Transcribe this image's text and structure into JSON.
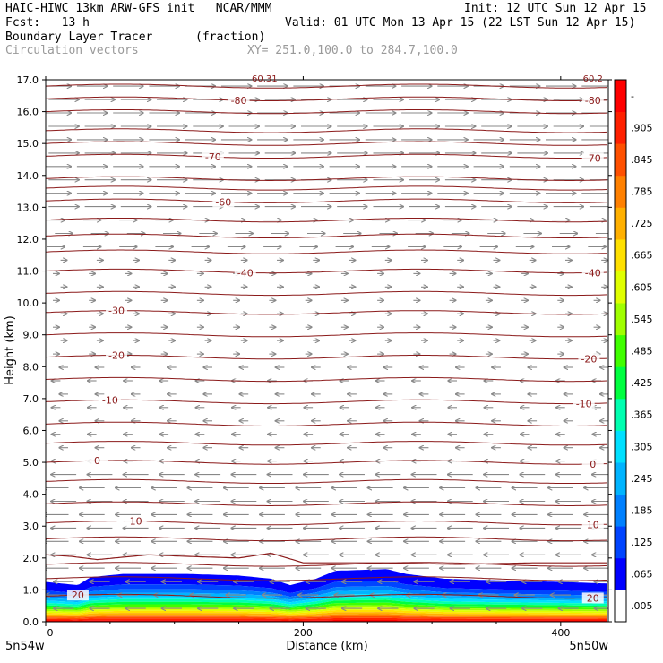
{
  "header": {
    "line1_left": "HAIC-HIWC 13km ARW-GFS init   NCAR/MMM",
    "line1_right": "Init: 12 UTC Sun 12 Apr 15",
    "line2_left": "Fcst:   13 h",
    "line2_right": "Valid: 01 UTC Mon 13 Apr 15 (22 LST Sun 12 Apr 15)",
    "field_name": "Boundary Layer Tracer",
    "field_units": "(fraction)",
    "overlay_name": "Circulation vectors",
    "cross_section": "XY= 251.0,100.0 to 284.7,100.0"
  },
  "chart_data": {
    "type": "cross-section",
    "xlabel": "Distance (km)",
    "ylabel": "Height (km)",
    "xlim": [
      0,
      437
    ],
    "ylim": [
      0,
      17
    ],
    "x_ticks": [
      "0",
      "200",
      "400"
    ],
    "x_tick_values": [
      0,
      200,
      400
    ],
    "y_ticks": [
      "0.0",
      "1.0",
      "2.0",
      "3.0",
      "4.0",
      "5.0",
      "6.0",
      "7.0",
      "8.0",
      "9.0",
      "10.0",
      "11.0",
      "12.0",
      "13.0",
      "14.0",
      "15.0",
      "16.0",
      "17.0"
    ],
    "x_left_label": "5n54w",
    "x_right_label": "5n50w",
    "top_labels": [
      {
        "text": "60.31",
        "x": 170
      },
      {
        "text": "60.2",
        "x": 425
      }
    ],
    "colorbar": {
      "labels": [
        ".005",
        ".065",
        ".125",
        ".185",
        ".245",
        ".305",
        ".365",
        ".425",
        ".485",
        ".545",
        ".605",
        ".665",
        ".725",
        ".785",
        ".845",
        ".905",
        "-"
      ],
      "colors": [
        "#ffffff",
        "#0000ff",
        "#0044ff",
        "#0080ff",
        "#00b4ff",
        "#00e0ff",
        "#00ffb0",
        "#00ff40",
        "#40ff00",
        "#a0ff00",
        "#e0ff00",
        "#ffe000",
        "#ffb000",
        "#ff8000",
        "#ff5000",
        "#ff2000",
        "#ff0000"
      ]
    },
    "temperature_contours": {
      "levels": [
        {
          "label": "20",
          "y": 0.8,
          "label_x": [
            25,
            425
          ]
        },
        {
          "label": "10",
          "y": 3.1,
          "label_x": [
            70,
            425
          ]
        },
        {
          "label": "0",
          "y": 5.0,
          "label_x": [
            40,
            425
          ]
        },
        {
          "label": "-10",
          "y": 6.9,
          "label_x": [
            50,
            418
          ]
        },
        {
          "label": "-20",
          "y": 8.3,
          "label_x": [
            55,
            422
          ]
        },
        {
          "label": "-30",
          "y": 9.7,
          "label_x": [
            55,
            null
          ]
        },
        {
          "label": "-40",
          "y": 11.0,
          "label_x": [
            155,
            425
          ]
        },
        {
          "label": "-60",
          "y": 13.2,
          "label_x": [
            138,
            null
          ]
        },
        {
          "label": "-70",
          "y": 14.6,
          "label_x": [
            130,
            425
          ]
        },
        {
          "label": "-80",
          "y": 16.4,
          "label_x": [
            150,
            425
          ]
        }
      ],
      "unlabeled_y": [
        1.35,
        1.8,
        2.6,
        3.7,
        4.4,
        5.6,
        6.2,
        7.6,
        9.0,
        10.3,
        11.6,
        12.1,
        12.6,
        13.6,
        13.9,
        15.0,
        15.4,
        16.0,
        16.8
      ]
    },
    "tracer_top_km": [
      [
        0,
        1.25
      ],
      [
        25,
        1.15
      ],
      [
        35,
        1.4
      ],
      [
        60,
        1.5
      ],
      [
        110,
        1.5
      ],
      [
        150,
        1.45
      ],
      [
        175,
        1.35
      ],
      [
        190,
        1.15
      ],
      [
        210,
        1.35
      ],
      [
        225,
        1.6
      ],
      [
        265,
        1.65
      ],
      [
        280,
        1.5
      ],
      [
        310,
        1.35
      ],
      [
        350,
        1.3
      ],
      [
        400,
        1.25
      ],
      [
        437,
        1.2
      ]
    ],
    "pbl_top_km": [
      [
        0,
        2.1
      ],
      [
        20,
        2.05
      ],
      [
        40,
        1.95
      ],
      [
        80,
        2.1
      ],
      [
        110,
        2.05
      ],
      [
        150,
        2.0
      ],
      [
        175,
        2.15
      ],
      [
        200,
        1.85
      ],
      [
        260,
        1.85
      ],
      [
        320,
        1.8
      ],
      [
        380,
        1.85
      ],
      [
        437,
        1.85
      ]
    ],
    "wind_vectors": [
      {
        "z_min": 0.0,
        "z_max": 1.5,
        "u": -0.8,
        "w": 0.0
      },
      {
        "z_min": 1.5,
        "z_max": 5.0,
        "u": -1.0,
        "w": 0.0
      },
      {
        "z_min": 5.0,
        "z_max": 8.0,
        "u": -0.35,
        "w": 0.0
      },
      {
        "z_min": 8.0,
        "z_max": 11.5,
        "u": 0.25,
        "w": 0.0
      },
      {
        "z_min": 11.5,
        "z_max": 13.0,
        "u": 0.7,
        "w": 0.0
      },
      {
        "z_min": 13.0,
        "z_max": 17.0,
        "u": 1.2,
        "w": 0.0
      }
    ]
  }
}
